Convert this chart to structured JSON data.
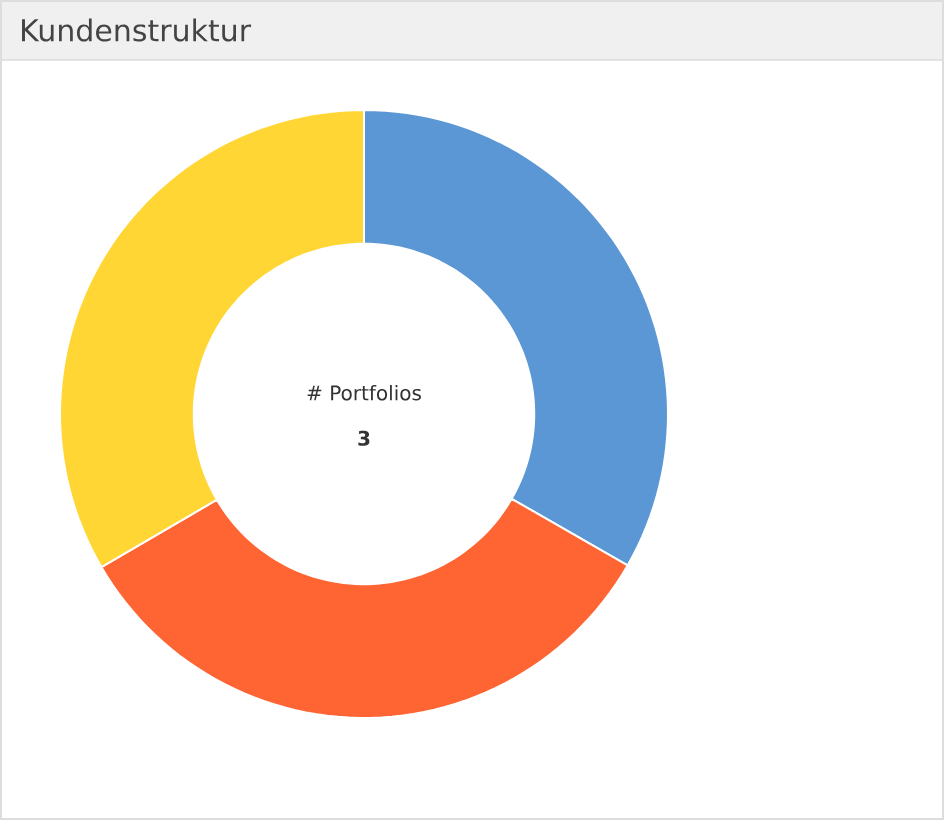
{
  "chart_data": {
    "type": "donut",
    "title": "Kundenstruktur",
    "annotations": [
      "# Portfolios",
      "3"
    ],
    "categories": [
      null,
      null,
      null
    ],
    "values": [
      33.3,
      33.3,
      33.4
    ],
    "colors": [
      "#5b97d5",
      "#ff6433",
      "#ffd633"
    ]
  }
}
